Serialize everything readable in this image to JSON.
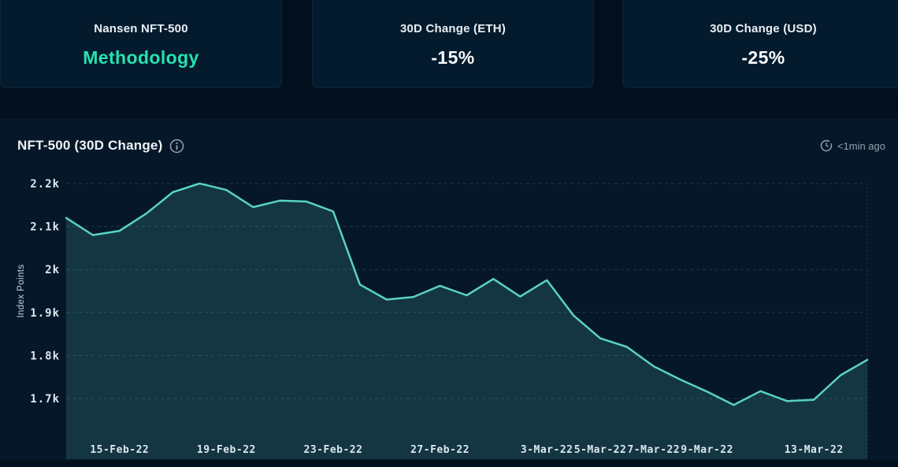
{
  "cards": [
    {
      "title": "Nansen NFT-500",
      "value": "Methodology"
    },
    {
      "title": "30D Change (ETH)",
      "value": "-15%"
    },
    {
      "title": "30D Change (USD)",
      "value": "-25%"
    }
  ],
  "panel": {
    "title": "NFT-500 (30D Change)",
    "info_icon": "info-circle-icon",
    "updated_icon": "clock-refresh-icon",
    "updated": "<1min ago"
  },
  "colors": {
    "page_bg": "#020F1C",
    "card_bg": "#041B2E",
    "panel_bg": "#051728",
    "accent_green": "#26E2AE",
    "line_teal": "#5AD2C6",
    "muted_text": "#93A0AD",
    "axis_text": "#DCE6EE"
  },
  "chart_data": {
    "type": "area",
    "title": "NFT-500 (30D Change)",
    "ylabel": "Index Points",
    "xlabel": "",
    "grid": true,
    "legend": false,
    "ylim": [
      1700,
      2200
    ],
    "x": [
      "13-Feb-22",
      "14-Feb-22",
      "15-Feb-22",
      "16-Feb-22",
      "17-Feb-22",
      "18-Feb-22",
      "19-Feb-22",
      "20-Feb-22",
      "21-Feb-22",
      "22-Feb-22",
      "23-Feb-22",
      "24-Feb-22",
      "25-Feb-22",
      "26-Feb-22",
      "27-Feb-22",
      "28-Feb-22",
      "1-Mar-22",
      "2-Mar-22",
      "3-Mar-22",
      "4-Mar-22",
      "5-Mar-22",
      "6-Mar-22",
      "7-Mar-22",
      "8-Mar-22",
      "9-Mar-22",
      "10-Mar-22",
      "11-Mar-22",
      "12-Mar-22",
      "13-Mar-22",
      "14-Mar-22",
      "15-Mar-22"
    ],
    "values": [
      2120,
      2080,
      2090,
      2130,
      2180,
      2200,
      2185,
      2145,
      2160,
      2158,
      2135,
      1965,
      1930,
      1936,
      1962,
      1940,
      1978,
      1937,
      1975,
      1893,
      1840,
      1820,
      1775,
      1744,
      1716,
      1685,
      1717,
      1694,
      1697,
      1754,
      1790
    ],
    "y_ticks": [
      {
        "value": 2200,
        "label": "2.2k"
      },
      {
        "value": 2100,
        "label": "2.1k"
      },
      {
        "value": 2000,
        "label": "2k"
      },
      {
        "value": 1900,
        "label": "1.9k"
      },
      {
        "value": 1800,
        "label": "1.8k"
      },
      {
        "value": 1700,
        "label": "1.7k"
      }
    ],
    "x_tick_labels": [
      {
        "index": 2,
        "label": "15-Feb-22"
      },
      {
        "index": 6,
        "label": "19-Feb-22"
      },
      {
        "index": 10,
        "label": "23-Feb-22"
      },
      {
        "index": 14,
        "label": "27-Feb-22"
      },
      {
        "index": 18,
        "label": "3-Mar-22"
      },
      {
        "index": 20,
        "label": "5-Mar-22"
      },
      {
        "index": 22,
        "label": "7-Mar-22"
      },
      {
        "index": 24,
        "label": "9-Mar-22"
      },
      {
        "index": 28,
        "label": "13-Mar-22"
      }
    ],
    "colors": {
      "line": "#5AD2C6",
      "area": "#5AD2C6",
      "area_opacity": 0.17,
      "grid": "#9FC3DA",
      "grid_opacity": 0.2,
      "tick_text": "#DCE6EE",
      "ylabel_text": "#C9D4DE"
    }
  }
}
